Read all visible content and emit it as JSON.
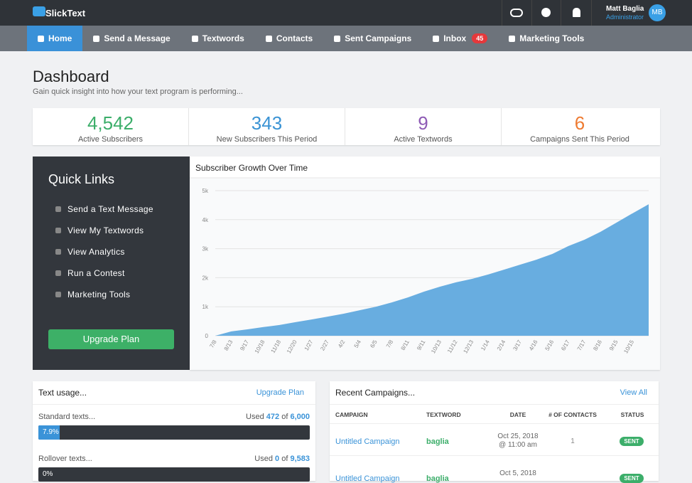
{
  "topbar": {
    "logo": "SlickText",
    "user_name": "Matt Baglia",
    "user_role": "Administrator",
    "avatar": "MB"
  },
  "nav": {
    "items": [
      "Home",
      "Send a Message",
      "Textwords",
      "Contacts",
      "Sent Campaigns",
      "Inbox",
      "Marketing Tools"
    ],
    "inbox_badge": "45",
    "active": "Home"
  },
  "header": {
    "title": "Dashboard",
    "subtitle": "Gain quick insight into how your text program is performing..."
  },
  "stats": [
    {
      "value": "4,542",
      "label": "Active Subscribers",
      "color": "#3cae6a"
    },
    {
      "value": "343",
      "label": "New Subscribers This Period",
      "color": "#3a93d4"
    },
    {
      "value": "9",
      "label": "Active Textwords",
      "color": "#8e5bb5"
    },
    {
      "value": "6",
      "label": "Campaigns Sent This Period",
      "color": "#ee7b32"
    }
  ],
  "quick_links": {
    "title": "Quick Links",
    "items": [
      "Send a Text Message",
      "View My Textwords",
      "View Analytics",
      "Run a Contest",
      "Marketing Tools"
    ],
    "button": "Upgrade Plan"
  },
  "chart_data": {
    "type": "area",
    "title": "Subscriber Growth Over Time",
    "categories": [
      "7/8",
      "8/13",
      "9/17",
      "10/18",
      "11/18",
      "12/20",
      "1/27",
      "2/27",
      "4/2",
      "5/4",
      "6/5",
      "7/8",
      "8/11",
      "9/11",
      "10/13",
      "11/12",
      "12/13",
      "1/14",
      "2/14",
      "3/17",
      "4/16",
      "5/16",
      "6/17",
      "7/17",
      "8/16",
      "9/15",
      "10/15",
      null
    ],
    "series": [
      {
        "name": "Subscribers",
        "color": "#68ade0",
        "values": [
          0,
          150,
          220,
          300,
          370,
          470,
          560,
          660,
          760,
          880,
          1000,
          1150,
          1320,
          1520,
          1690,
          1840,
          1960,
          2110,
          2280,
          2450,
          2620,
          2820,
          3090,
          3310,
          3580,
          3900,
          4220,
          4530
        ]
      }
    ],
    "ylim": [
      0,
      5000
    ],
    "yticks": [
      0,
      {
        "value": 1000,
        "label": "1k"
      },
      {
        "value": 2000,
        "label": "2k"
      },
      {
        "value": 3000,
        "label": "3k"
      },
      {
        "value": 4000,
        "label": "4k"
      },
      {
        "value": 5000,
        "label": "5k"
      }
    ],
    "grid": true
  },
  "text_usage": {
    "title": "Text usage...",
    "link": "Upgrade Plan",
    "rows": [
      {
        "label": "Standard texts...",
        "used_word": "Used",
        "used": "472",
        "of_word": "of",
        "total": "6,000",
        "percent": 7.9,
        "percent_label": "7.9%"
      },
      {
        "label": "Rollover texts...",
        "used_word": "Used",
        "used": "0",
        "of_word": "of",
        "total": "9,583",
        "percent": 0,
        "percent_label": "0%"
      }
    ]
  },
  "campaigns": {
    "title": "Recent Campaigns...",
    "link": "View All",
    "headers": [
      "CAMPAIGN",
      "TEXTWORD",
      "DATE",
      "# OF CONTACTS",
      "STATUS"
    ],
    "rows": [
      {
        "campaign": "Untitled Campaign",
        "textword": "baglia",
        "date": "Oct 25, 2018",
        "time": "@ 11:00 am",
        "contacts": "1",
        "status": "SENT"
      },
      {
        "campaign": "Untitled Campaign",
        "textword": "baglia",
        "date": "Oct 5, 2018",
        "status": "SENT"
      }
    ]
  }
}
